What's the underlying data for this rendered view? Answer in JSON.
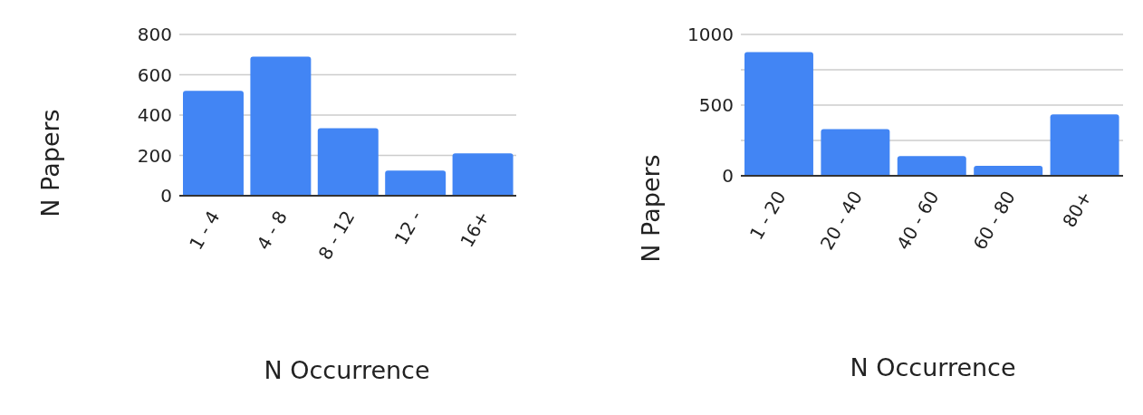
{
  "chart_data": [
    {
      "type": "bar",
      "xlabel": "N Occurrence",
      "ylabel": "N Papers",
      "categories": [
        "1 - 4",
        "4 - 8",
        "8 - 12",
        "12 -",
        "16+"
      ],
      "values": [
        520,
        690,
        335,
        125,
        210
      ],
      "color": "#4285f4",
      "ylim": [
        0,
        800
      ],
      "yticks": [
        0,
        200,
        400,
        600,
        800
      ],
      "grid": "y"
    },
    {
      "type": "bar",
      "xlabel": "N Occurrence",
      "ylabel": "N Papers",
      "categories": [
        "1 - 20",
        "20 - 40",
        "40 - 60",
        "60 - 80",
        "80+"
      ],
      "values": [
        875,
        330,
        140,
        70,
        435
      ],
      "color": "#4285f4",
      "ylim": [
        0,
        1000
      ],
      "yticks": [
        0,
        {
          "value": 250,
          "label": null
        },
        500,
        {
          "value": 750,
          "label": null
        },
        1000
      ],
      "grid": "y"
    }
  ]
}
